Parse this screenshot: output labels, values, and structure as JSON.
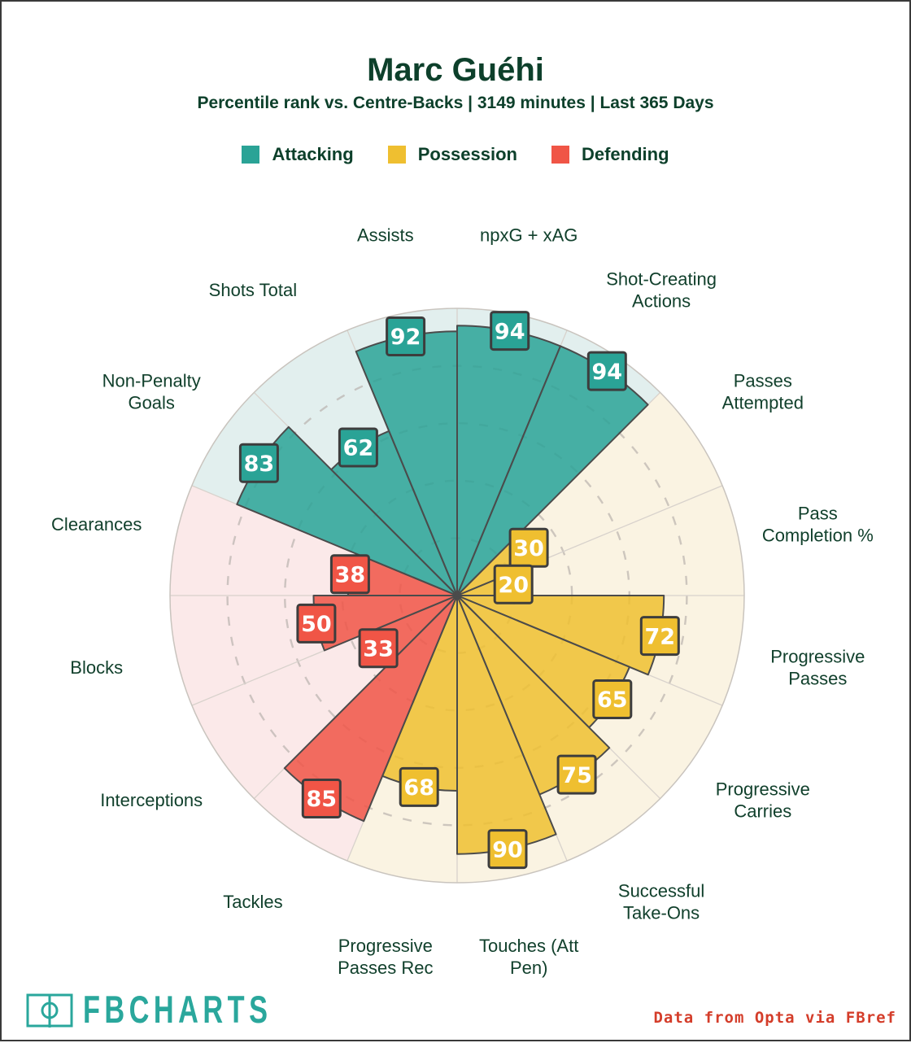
{
  "header": {
    "title": "Marc Guéhi",
    "subtitle": "Percentile rank vs. Centre-Backs | 3149 minutes | Last 365 Days"
  },
  "footer": {
    "brand": "FBCHARTS",
    "credit": "Data from Opta via FBref",
    "logo_icon": "football-pitch-icon"
  },
  "colors": {
    "title_text": "#0d402b",
    "label_text": "#11402c",
    "brand_teal": "#2aa79c",
    "credit_red": "#d43d2a",
    "wedge_stroke": "#4b4b4b",
    "badge_stroke": "#3d3d3d",
    "gridline": "#b9b2ae",
    "divider": "#d8d2cc",
    "outer_ring": "#c9c4be"
  },
  "chart_data": {
    "type": "polar-bar",
    "title": "Marc Guéhi",
    "subtitle": "Percentile rank vs. Centre-Backs | 3149 minutes | Last 365 Days",
    "scale_max": 100,
    "gridlines": [
      20,
      40,
      60,
      80
    ],
    "grid": "dashed-circles",
    "legend_position": "top",
    "start_angle_deg": 0,
    "groups": [
      {
        "name": "Attacking",
        "color": "#2aa396",
        "bg": "#e2efee"
      },
      {
        "name": "Possession",
        "color": "#efbf30",
        "bg": "#faf3e2"
      },
      {
        "name": "Defending",
        "color": "#f05546",
        "bg": "#fbe9e9"
      }
    ],
    "slices": [
      {
        "label": [
          "npxG + xAG"
        ],
        "value": 94,
        "group": "Attacking"
      },
      {
        "label": [
          "Shot-Creating",
          "Actions"
        ],
        "value": 94,
        "group": "Attacking"
      },
      {
        "label": [
          "Passes",
          "Attempted"
        ],
        "value": 30,
        "group": "Possession"
      },
      {
        "label": [
          "Pass",
          "Completion %"
        ],
        "value": 20,
        "group": "Possession"
      },
      {
        "label": [
          "Progressive",
          "Passes"
        ],
        "value": 72,
        "group": "Possession"
      },
      {
        "label": [
          "Progressive",
          "Carries"
        ],
        "value": 65,
        "group": "Possession"
      },
      {
        "label": [
          "Successful",
          "Take-Ons"
        ],
        "value": 75,
        "group": "Possession"
      },
      {
        "label": [
          "Touches (Att",
          "Pen)"
        ],
        "value": 90,
        "group": "Possession"
      },
      {
        "label": [
          "Progressive",
          "Passes Rec"
        ],
        "value": 68,
        "group": "Possession"
      },
      {
        "label": [
          "Tackles"
        ],
        "value": 85,
        "group": "Defending"
      },
      {
        "label": [
          "Interceptions"
        ],
        "value": 33,
        "group": "Defending"
      },
      {
        "label": [
          "Blocks"
        ],
        "value": 50,
        "group": "Defending"
      },
      {
        "label": [
          "Clearances"
        ],
        "value": 38,
        "group": "Defending"
      },
      {
        "label": [
          "Non-Penalty",
          "Goals"
        ],
        "value": 83,
        "group": "Attacking"
      },
      {
        "label": [
          "Shots Total"
        ],
        "value": 62,
        "group": "Attacking"
      },
      {
        "label": [
          "Assists"
        ],
        "value": 92,
        "group": "Attacking"
      }
    ]
  }
}
